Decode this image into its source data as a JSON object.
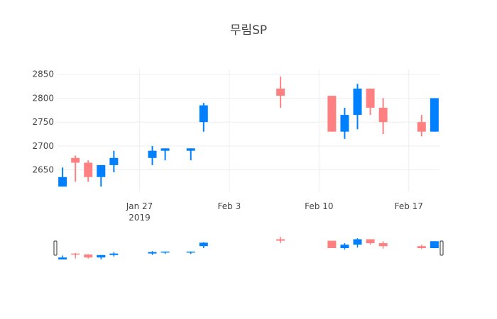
{
  "chart_data": {
    "type": "candlestick",
    "title": "무림SP",
    "xlabel": "",
    "ylabel": "",
    "ylim": [
      2605,
      2860
    ],
    "y_ticks": [
      2650,
      2700,
      2750,
      2800,
      2850
    ],
    "x_ticks": [
      {
        "date": "2019-01-27",
        "label": "Jan 27",
        "sublabel": "2019"
      },
      {
        "date": "2019-02-03",
        "label": "Feb 3",
        "sublabel": ""
      },
      {
        "date": "2019-02-10",
        "label": "Feb 10",
        "sublabel": ""
      },
      {
        "date": "2019-02-17",
        "label": "Feb 17",
        "sublabel": ""
      }
    ],
    "x_range": [
      "2019-01-21",
      "2019-02-19"
    ],
    "grid": true,
    "rangeslider": true,
    "increasing_color": "#FF8080",
    "decreasing_color": "#0080FF",
    "candles": [
      {
        "date": "2019-01-21",
        "open": 2635,
        "high": 2655,
        "low": 2615,
        "close": 2615
      },
      {
        "date": "2019-01-22",
        "open": 2665,
        "high": 2680,
        "low": 2625,
        "close": 2675
      },
      {
        "date": "2019-01-23",
        "open": 2635,
        "high": 2670,
        "low": 2625,
        "close": 2665
      },
      {
        "date": "2019-01-24",
        "open": 2660,
        "high": 2660,
        "low": 2615,
        "close": 2635
      },
      {
        "date": "2019-01-25",
        "open": 2675,
        "high": 2690,
        "low": 2645,
        "close": 2660
      },
      {
        "date": "2019-01-28",
        "open": 2690,
        "high": 2700,
        "low": 2660,
        "close": 2675
      },
      {
        "date": "2019-01-29",
        "open": 2695,
        "high": 2695,
        "low": 2670,
        "close": 2690
      },
      {
        "date": "2019-01-31",
        "open": 2695,
        "high": 2695,
        "low": 2670,
        "close": 2690
      },
      {
        "date": "2019-02-01",
        "open": 2785,
        "high": 2790,
        "low": 2730,
        "close": 2750
      },
      {
        "date": "2019-02-07",
        "open": 2805,
        "high": 2845,
        "low": 2780,
        "close": 2820
      },
      {
        "date": "2019-02-11",
        "open": 2730,
        "high": 2805,
        "low": 2730,
        "close": 2805
      },
      {
        "date": "2019-02-12",
        "open": 2765,
        "high": 2780,
        "low": 2715,
        "close": 2730
      },
      {
        "date": "2019-02-13",
        "open": 2820,
        "high": 2830,
        "low": 2735,
        "close": 2765
      },
      {
        "date": "2019-02-14",
        "open": 2780,
        "high": 2820,
        "low": 2765,
        "close": 2820
      },
      {
        "date": "2019-02-15",
        "open": 2750,
        "high": 2800,
        "low": 2725,
        "close": 2780
      },
      {
        "date": "2019-02-18",
        "open": 2730,
        "high": 2765,
        "low": 2720,
        "close": 2750
      },
      {
        "date": "2019-02-19",
        "open": 2800,
        "high": 2800,
        "low": 2730,
        "close": 2730
      }
    ]
  }
}
